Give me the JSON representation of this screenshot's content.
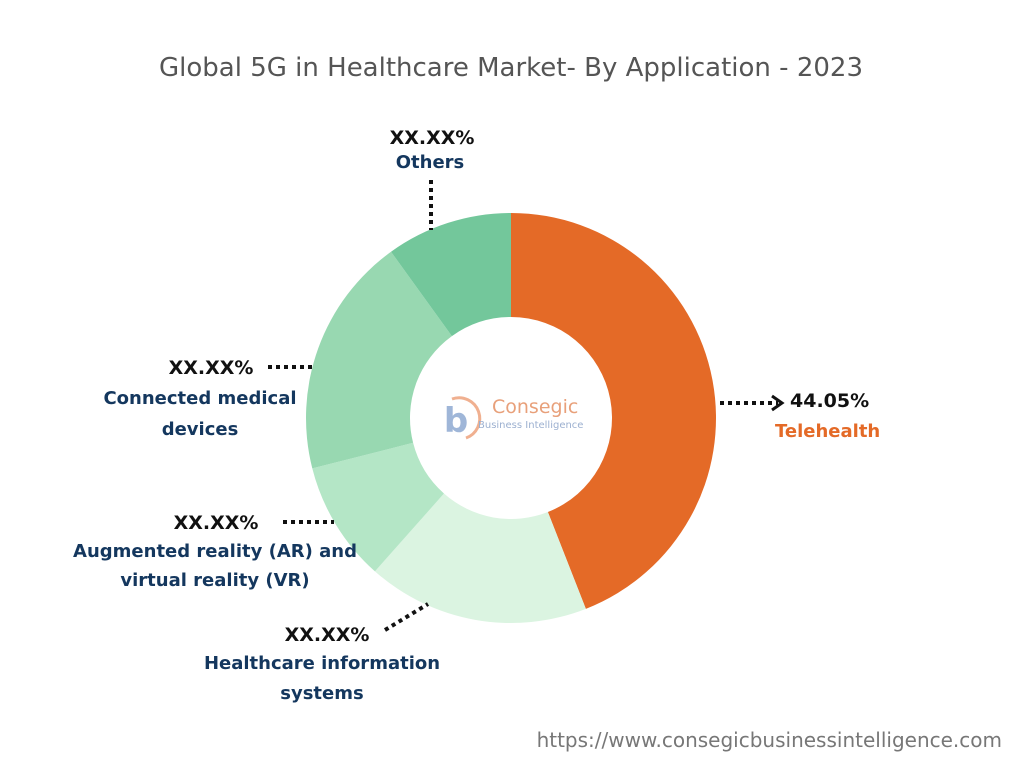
{
  "chart_data": {
    "type": "pie",
    "title": "Global 5G in Healthcare Market- By Application - 2023",
    "slices": [
      {
        "label": "Telehealth",
        "value": 44.05,
        "value_label": "44.05%",
        "color": "#e46a27",
        "label_color": "#e46a27"
      },
      {
        "label": "Healthcare information systems",
        "value": 17.5,
        "value_label": "XX.XX%",
        "color": "#dbf4e1",
        "label_color": "#14375e"
      },
      {
        "label": "Augmented reality (AR) and virtual reality (VR)",
        "value": 9.5,
        "value_label": "XX.XX%",
        "color": "#b4e6c6",
        "label_color": "#14375e"
      },
      {
        "label": "Connected medical devices",
        "value": 19.0,
        "value_label": "XX.XX%",
        "color": "#98d8b1",
        "label_color": "#14375e"
      },
      {
        "label": "Others",
        "value": 9.95,
        "value_label": "XX.XX%",
        "color": "#73c79b",
        "label_color": "#14375e"
      }
    ]
  },
  "watermark": {
    "logo_mark": "b",
    "brand": "Consegic",
    "tagline": "Business Intelligence"
  },
  "footer": {
    "url": "https://www.consegicbusinessintelligence.com"
  }
}
